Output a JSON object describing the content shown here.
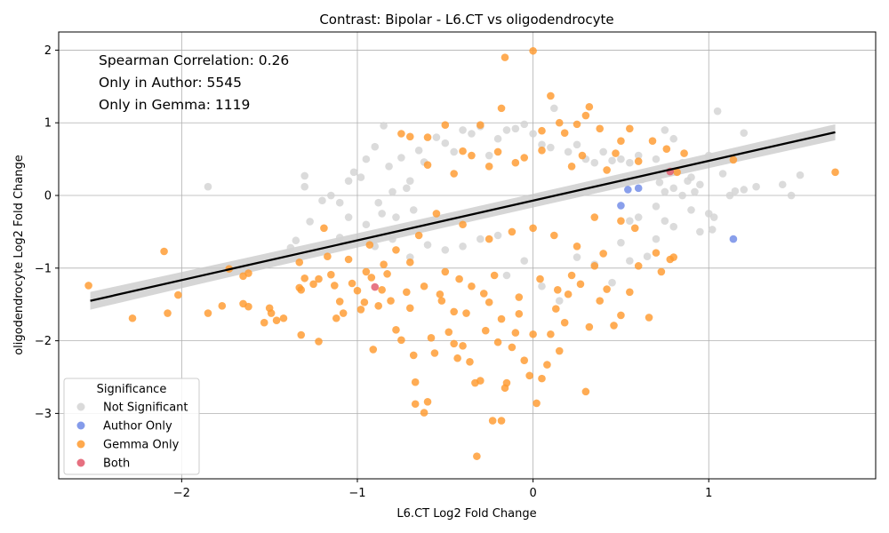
{
  "chart_data": {
    "type": "scatter",
    "title": "Contrast: Bipolar - L6.CT vs oligodendrocyte",
    "xlabel": "L6.CT Log2 Fold Change",
    "ylabel": "oligodendrocyte Log2 Fold Change",
    "xlim": [
      -2.7,
      1.95
    ],
    "ylim": [
      -3.9,
      2.25
    ],
    "xticks": [
      -2,
      -1,
      0,
      1
    ],
    "yticks": [
      -3,
      -2,
      -1,
      0,
      1,
      2
    ],
    "xtick_labels": [
      "−2",
      "−1",
      "0",
      "1"
    ],
    "ytick_labels": [
      "−3",
      "−2",
      "−1",
      "0",
      "1",
      "2"
    ],
    "grid": true,
    "legend_placement": "lower-left",
    "annotations": [
      "Spearman Correlation: 0.26",
      "Only in Author: 5545",
      "Only in Gemma: 1119"
    ],
    "legend": {
      "title": "Significance",
      "entries": [
        {
          "name": "Not Significant",
          "color": "#d3d3d3"
        },
        {
          "name": "Author Only",
          "color": "#6f8ae6"
        },
        {
          "name": "Gemma Only",
          "color": "#ff9a2e"
        },
        {
          "name": "Both",
          "color": "#e2576a"
        }
      ]
    },
    "regression": {
      "x": [
        -2.52,
        1.72
      ],
      "y": [
        -1.45,
        0.87
      ],
      "color": "#000000",
      "band_color": "#c8c8c8"
    },
    "series": [
      {
        "name": "Not Significant",
        "color": "#d3d3d3",
        "points": [
          [
            -1.85,
            0.12
          ],
          [
            -1.3,
            0.27
          ],
          [
            -1.3,
            0.12
          ],
          [
            -1.27,
            -0.36
          ],
          [
            -1.2,
            -0.07
          ],
          [
            -1.15,
            0.0
          ],
          [
            -1.1,
            -0.58
          ],
          [
            -1.05,
            0.2
          ],
          [
            -1.02,
            0.32
          ],
          [
            -0.98,
            0.25
          ],
          [
            -0.95,
            0.5
          ],
          [
            -0.9,
            0.67
          ],
          [
            -0.85,
            0.96
          ],
          [
            -0.82,
            0.4
          ],
          [
            -0.75,
            0.52
          ],
          [
            -0.7,
            0.2
          ],
          [
            -0.65,
            0.62
          ],
          [
            -0.62,
            0.46
          ],
          [
            -0.55,
            0.8
          ],
          [
            -0.5,
            0.72
          ],
          [
            -0.45,
            0.6
          ],
          [
            -0.4,
            0.9
          ],
          [
            -0.35,
            0.85
          ],
          [
            -0.3,
            0.95
          ],
          [
            -0.25,
            0.55
          ],
          [
            -0.2,
            0.78
          ],
          [
            -0.15,
            0.9
          ],
          [
            -0.1,
            0.92
          ],
          [
            -0.05,
            0.98
          ],
          [
            0.0,
            0.85
          ],
          [
            0.05,
            0.7
          ],
          [
            0.1,
            0.66
          ],
          [
            0.12,
            1.2
          ],
          [
            0.2,
            0.6
          ],
          [
            0.25,
            0.7
          ],
          [
            0.3,
            0.5
          ],
          [
            0.35,
            0.45
          ],
          [
            0.4,
            0.6
          ],
          [
            0.45,
            0.48
          ],
          [
            0.5,
            0.5
          ],
          [
            0.55,
            0.45
          ],
          [
            0.6,
            0.55
          ],
          [
            0.65,
            0.3
          ],
          [
            0.7,
            0.5
          ],
          [
            0.75,
            0.9
          ],
          [
            0.8,
            0.78
          ],
          [
            0.85,
            0.45
          ],
          [
            0.9,
            0.25
          ],
          [
            0.95,
            0.15
          ],
          [
            1.0,
            0.55
          ],
          [
            1.05,
            1.16
          ],
          [
            1.08,
            0.3
          ],
          [
            1.12,
            0.0
          ],
          [
            1.15,
            0.06
          ],
          [
            1.2,
            0.86
          ],
          [
            1.2,
            0.08
          ],
          [
            1.27,
            0.12
          ],
          [
            1.42,
            0.15
          ],
          [
            1.47,
            0.0
          ],
          [
            1.52,
            0.28
          ],
          [
            1.0,
            -0.25
          ],
          [
            1.03,
            -0.3
          ],
          [
            1.02,
            -0.47
          ],
          [
            0.95,
            -0.5
          ],
          [
            0.8,
            -0.43
          ],
          [
            0.75,
            -0.35
          ],
          [
            0.7,
            -0.6
          ],
          [
            0.65,
            -0.84
          ],
          [
            0.55,
            -0.9
          ],
          [
            0.5,
            -0.65
          ],
          [
            0.45,
            -1.2
          ],
          [
            0.35,
            -0.95
          ],
          [
            0.25,
            -0.85
          ],
          [
            0.15,
            -1.45
          ],
          [
            0.05,
            -1.25
          ],
          [
            -0.05,
            -0.9
          ],
          [
            -0.15,
            -1.1
          ],
          [
            -0.2,
            -0.55
          ],
          [
            -0.3,
            -0.6
          ],
          [
            -0.4,
            -0.7
          ],
          [
            -0.5,
            -0.75
          ],
          [
            -0.6,
            -0.68
          ],
          [
            -0.7,
            -0.85
          ],
          [
            -0.8,
            -0.6
          ],
          [
            -0.9,
            -0.7
          ],
          [
            -0.95,
            -0.4
          ],
          [
            -1.05,
            -0.3
          ],
          [
            -1.1,
            -0.1
          ],
          [
            -1.35,
            -0.62
          ],
          [
            -1.38,
            -0.72
          ],
          [
            -1.4,
            -0.8
          ],
          [
            -0.88,
            -0.1
          ],
          [
            -0.86,
            -0.25
          ],
          [
            -0.8,
            0.05
          ],
          [
            -0.78,
            -0.3
          ],
          [
            -0.72,
            0.1
          ],
          [
            -0.68,
            -0.2
          ],
          [
            0.75,
            0.05
          ],
          [
            0.8,
            0.1
          ],
          [
            0.85,
            0.0
          ],
          [
            0.88,
            0.2
          ],
          [
            0.9,
            -0.2
          ],
          [
            0.92,
            0.05
          ],
          [
            0.7,
            -0.15
          ],
          [
            0.72,
            0.18
          ],
          [
            0.6,
            -0.3
          ],
          [
            0.62,
            0.22
          ],
          [
            0.55,
            -0.35
          ]
        ]
      },
      {
        "name": "Gemma Only",
        "color": "#ff9a2e",
        "points": [
          [
            -2.53,
            -1.24
          ],
          [
            -2.28,
            -1.69
          ],
          [
            -2.1,
            -0.77
          ],
          [
            -2.08,
            -1.62
          ],
          [
            -2.02,
            -1.37
          ],
          [
            -1.85,
            -1.62
          ],
          [
            -1.77,
            -1.52
          ],
          [
            -1.73,
            -1.01
          ],
          [
            -1.65,
            -1.49
          ],
          [
            -1.65,
            -1.11
          ],
          [
            -1.62,
            -1.53
          ],
          [
            -1.62,
            -1.07
          ],
          [
            -1.53,
            -1.75
          ],
          [
            -1.5,
            -1.55
          ],
          [
            -1.49,
            -1.62
          ],
          [
            -1.46,
            -1.72
          ],
          [
            -1.42,
            -1.69
          ],
          [
            -1.33,
            -0.92
          ],
          [
            -1.33,
            -1.27
          ],
          [
            -1.32,
            -1.3
          ],
          [
            -1.32,
            -1.92
          ],
          [
            -1.3,
            -1.14
          ],
          [
            -1.25,
            -1.22
          ],
          [
            -1.22,
            -2.01
          ],
          [
            -1.22,
            -1.15
          ],
          [
            -1.19,
            -0.45
          ],
          [
            -1.17,
            -0.84
          ],
          [
            -1.15,
            -1.09
          ],
          [
            -1.13,
            -1.24
          ],
          [
            -1.12,
            -1.69
          ],
          [
            -1.1,
            -1.46
          ],
          [
            -1.08,
            -1.62
          ],
          [
            -1.05,
            -0.88
          ],
          [
            -1.03,
            -1.21
          ],
          [
            -1.0,
            -1.31
          ],
          [
            -0.98,
            -1.57
          ],
          [
            -0.96,
            -1.47
          ],
          [
            -0.93,
            -0.68
          ],
          [
            -0.92,
            -1.13
          ],
          [
            -0.91,
            -2.12
          ],
          [
            -0.88,
            -1.52
          ],
          [
            -0.86,
            -1.3
          ],
          [
            -0.83,
            -1.08
          ],
          [
            -0.81,
            -1.45
          ],
          [
            -0.78,
            -1.85
          ],
          [
            -0.75,
            -1.99
          ],
          [
            -0.72,
            -1.33
          ],
          [
            -0.7,
            -0.92
          ],
          [
            -0.68,
            -2.2
          ],
          [
            -0.67,
            -2.57
          ],
          [
            -0.67,
            -2.87
          ],
          [
            -0.62,
            -2.99
          ],
          [
            -0.6,
            -2.84
          ],
          [
            -0.58,
            -1.96
          ],
          [
            -0.56,
            -2.17
          ],
          [
            -0.53,
            -1.36
          ],
          [
            -0.5,
            -1.05
          ],
          [
            -0.48,
            -1.88
          ],
          [
            -0.45,
            -2.04
          ],
          [
            -0.43,
            -2.24
          ],
          [
            -0.4,
            -2.07
          ],
          [
            -0.38,
            -1.62
          ],
          [
            -0.36,
            -2.29
          ],
          [
            -0.33,
            -2.58
          ],
          [
            -0.32,
            -3.59
          ],
          [
            -0.3,
            -2.55
          ],
          [
            -0.27,
            -1.86
          ],
          [
            -0.25,
            -1.47
          ],
          [
            -0.23,
            -3.1
          ],
          [
            -0.2,
            -2.02
          ],
          [
            -0.18,
            -3.1
          ],
          [
            -0.16,
            -2.65
          ],
          [
            -0.15,
            -2.58
          ],
          [
            -0.12,
            -2.09
          ],
          [
            -0.1,
            -1.89
          ],
          [
            -0.08,
            -1.63
          ],
          [
            -0.05,
            -2.27
          ],
          [
            -0.02,
            -2.48
          ],
          [
            0.0,
            -1.91
          ],
          [
            0.02,
            -2.86
          ],
          [
            0.05,
            -2.52
          ],
          [
            0.08,
            -2.33
          ],
          [
            0.1,
            -1.91
          ],
          [
            0.13,
            -1.56
          ],
          [
            0.15,
            -2.14
          ],
          [
            0.2,
            -1.36
          ],
          [
            0.22,
            -1.1
          ],
          [
            0.27,
            -1.22
          ],
          [
            0.3,
            -2.7
          ],
          [
            0.32,
            -1.81
          ],
          [
            0.35,
            -0.97
          ],
          [
            0.38,
            -1.45
          ],
          [
            0.42,
            -1.29
          ],
          [
            0.46,
            -1.79
          ],
          [
            0.5,
            -1.65
          ],
          [
            0.55,
            -1.33
          ],
          [
            0.6,
            -0.97
          ],
          [
            0.66,
            -1.68
          ],
          [
            0.7,
            -0.79
          ],
          [
            0.73,
            -1.05
          ],
          [
            0.78,
            -0.88
          ],
          [
            0.8,
            -0.85
          ],
          [
            -0.75,
            0.85
          ],
          [
            -0.7,
            0.81
          ],
          [
            -0.6,
            0.8
          ],
          [
            -0.5,
            0.97
          ],
          [
            -0.4,
            0.61
          ],
          [
            -0.3,
            0.97
          ],
          [
            -0.2,
            0.6
          ],
          [
            -0.18,
            1.2
          ],
          [
            -0.16,
            1.9
          ],
          [
            -0.05,
            0.52
          ],
          [
            0.0,
            1.99
          ],
          [
            0.05,
            0.89
          ],
          [
            0.1,
            1.37
          ],
          [
            0.15,
            1.0
          ],
          [
            0.18,
            0.86
          ],
          [
            0.25,
            0.98
          ],
          [
            0.3,
            1.1
          ],
          [
            0.32,
            1.22
          ],
          [
            0.38,
            0.92
          ],
          [
            0.42,
            0.35
          ],
          [
            0.47,
            0.58
          ],
          [
            0.5,
            0.75
          ],
          [
            0.55,
            0.92
          ],
          [
            0.6,
            0.47
          ],
          [
            0.68,
            0.75
          ],
          [
            0.76,
            0.64
          ],
          [
            0.82,
            0.32
          ],
          [
            0.86,
            0.58
          ],
          [
            1.14,
            0.49
          ],
          [
            1.72,
            0.32
          ],
          [
            -0.6,
            0.42
          ],
          [
            -0.45,
            0.3
          ],
          [
            -0.35,
            0.55
          ],
          [
            -0.25,
            0.4
          ],
          [
            -0.1,
            0.45
          ],
          [
            0.05,
            0.62
          ],
          [
            0.22,
            0.4
          ],
          [
            0.28,
            0.55
          ],
          [
            -0.55,
            -0.25
          ],
          [
            -0.4,
            -0.4
          ],
          [
            -0.25,
            -0.6
          ],
          [
            -0.12,
            -0.5
          ],
          [
            0.0,
            -0.45
          ],
          [
            0.12,
            -0.55
          ],
          [
            0.25,
            -0.7
          ],
          [
            0.35,
            -0.3
          ],
          [
            0.5,
            -0.35
          ],
          [
            0.58,
            -0.45
          ],
          [
            -0.65,
            -0.55
          ],
          [
            -0.78,
            -0.75
          ],
          [
            -0.85,
            -0.95
          ],
          [
            -0.95,
            -1.05
          ],
          [
            -0.52,
            -1.45
          ],
          [
            -0.45,
            -1.6
          ],
          [
            -0.35,
            -1.25
          ],
          [
            -0.28,
            -1.35
          ],
          [
            -0.22,
            -1.1
          ],
          [
            -0.18,
            -1.7
          ],
          [
            -0.08,
            -1.4
          ],
          [
            0.04,
            -1.15
          ],
          [
            0.14,
            -1.3
          ],
          [
            0.18,
            -1.75
          ],
          [
            -0.42,
            -1.15
          ],
          [
            -0.62,
            -1.25
          ],
          [
            -0.7,
            -1.55
          ],
          [
            0.4,
            -0.8
          ]
        ]
      },
      {
        "name": "Author Only",
        "color": "#6f8ae6",
        "points": [
          [
            1.14,
            -0.6
          ],
          [
            0.54,
            0.08
          ],
          [
            0.5,
            -0.14
          ],
          [
            0.6,
            0.1
          ]
        ]
      },
      {
        "name": "Both",
        "color": "#e2576a",
        "points": [
          [
            -0.9,
            -1.26
          ],
          [
            0.78,
            0.33
          ]
        ]
      }
    ]
  }
}
